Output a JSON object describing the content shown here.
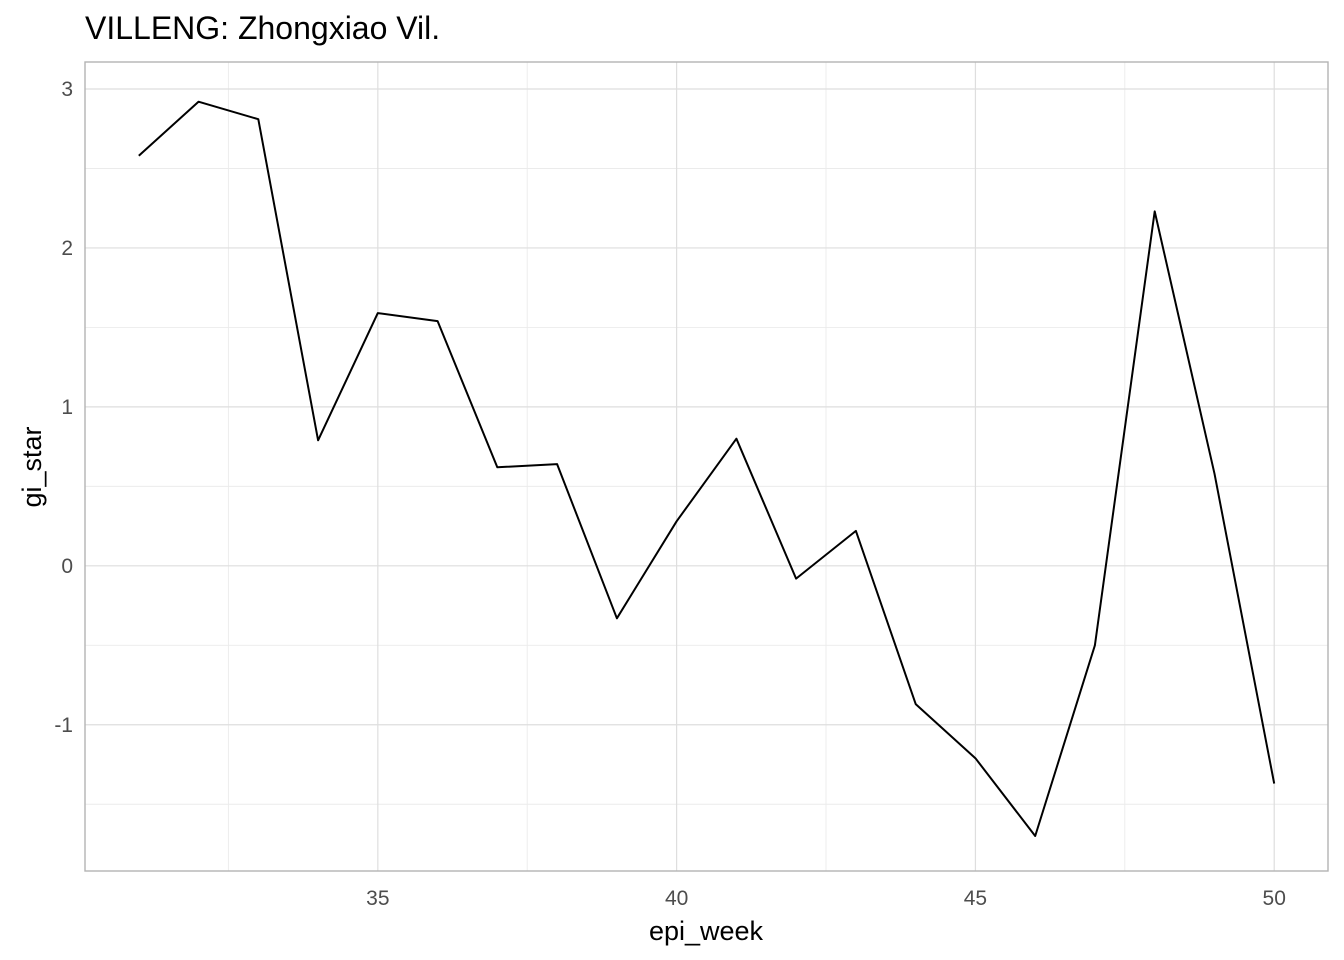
{
  "chart_data": {
    "type": "line",
    "title": "VILLENG: Zhongxiao Vil.",
    "xlabel": "epi_week",
    "ylabel": "gi_star",
    "xlim": [
      30.1,
      50.9
    ],
    "ylim": [
      -1.92,
      3.17
    ],
    "x_ticks": [
      35,
      40,
      45,
      50
    ],
    "x_tick_labels": [
      "35",
      "40",
      "45",
      "50"
    ],
    "y_ticks": [
      -1,
      0,
      1,
      2,
      3
    ],
    "y_tick_labels": [
      "-1",
      "0",
      "1",
      "2",
      "3"
    ],
    "grid": true,
    "legend": "none",
    "line_color": "#000000",
    "series": [
      {
        "x": [
          31,
          32,
          33,
          34,
          35,
          36,
          37,
          38,
          39,
          40,
          41,
          42,
          43,
          44,
          45,
          46,
          47,
          48,
          49,
          50
        ],
        "values": [
          2.58,
          2.92,
          2.81,
          0.79,
          1.59,
          1.54,
          0.62,
          0.64,
          -0.33,
          0.28,
          0.8,
          -0.08,
          0.22,
          -0.87,
          -1.21,
          -1.7,
          -0.5,
          2.23,
          0.58,
          -1.37
        ]
      }
    ]
  }
}
